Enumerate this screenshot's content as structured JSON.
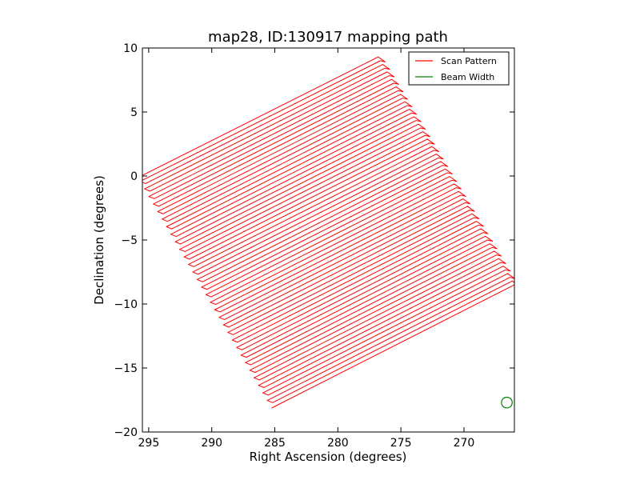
{
  "chart_data": {
    "type": "line",
    "title": "map28, ID:130917 mapping path",
    "xlabel": "Right Ascension (degrees)",
    "ylabel": "Declination (degrees)",
    "xlim": [
      295.5,
      266.0
    ],
    "ylim": [
      -20,
      10
    ],
    "x_ticks": [
      295,
      290,
      285,
      280,
      275,
      270
    ],
    "x_tick_labels": [
      "295",
      "290",
      "285",
      "280",
      "275",
      "270"
    ],
    "y_ticks": [
      10,
      5,
      0,
      -5,
      -10,
      -15,
      -20
    ],
    "y_tick_labels": [
      "10",
      "5",
      "0",
      "−5",
      "−10",
      "−15",
      "−20"
    ],
    "grid": false,
    "legend_position": "top-right",
    "series": [
      {
        "name": "Scan Pattern",
        "color": "#ff0000",
        "pattern": "raster",
        "corners": {
          "upper_left": [
            295.6,
            0.0
          ],
          "upper_right": [
            276.8,
            9.3
          ],
          "lower_right": [
            266.0,
            -8.5
          ],
          "lower_left": [
            285.0,
            -18.0
          ]
        },
        "scan_lines": 62
      },
      {
        "name": "Beam Width",
        "color": "#008000",
        "shape": "circle",
        "center": [
          266.6,
          -17.7
        ],
        "radius_deg": 0.35
      }
    ]
  }
}
